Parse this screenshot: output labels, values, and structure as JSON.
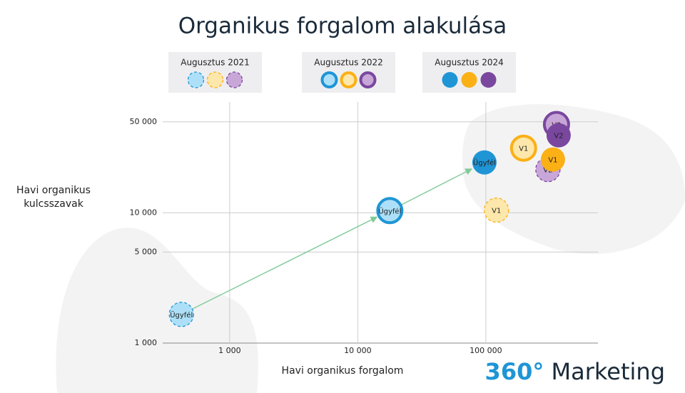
{
  "chart_data": {
    "type": "scatter",
    "title": "Organikus forgalom alakulása",
    "xlabel": "Havi organikus forgalom",
    "ylabel": "Havi organikus kulcsszavak",
    "xlog": true,
    "ylog": true,
    "grid": true,
    "xlim": [
      300,
      750000
    ],
    "ylim": [
      1000,
      71000
    ],
    "xticks": [
      {
        "value": 1000,
        "label": "1 000"
      },
      {
        "value": 10000,
        "label": "10 000"
      },
      {
        "value": 100000,
        "label": "100 000"
      }
    ],
    "yticks": [
      {
        "value": 1000,
        "label": "1 000"
      },
      {
        "value": 5000,
        "label": "5 000"
      },
      {
        "value": 10000,
        "label": "10 000"
      },
      {
        "value": 50000,
        "label": "50 000"
      }
    ],
    "point_colors": [
      "#1f95d6",
      "#fbb015",
      "#7a479e"
    ],
    "light_colors": [
      "#ade0f8",
      "#fde7ab",
      "#c8a6d8"
    ],
    "trend_color": "#7fcb96",
    "series": [
      {
        "name": "Augusztus 2021",
        "style": "dashed",
        "labels": [
          "Ügyfél",
          "V1",
          "V2"
        ],
        "x": [
          420,
          121000,
          305000
        ],
        "y": [
          1660,
          10500,
          21500
        ]
      },
      {
        "name": "Augusztus 2022",
        "style": "ring",
        "labels": [
          "Ügyfél",
          "V1",
          "V2"
        ],
        "x": [
          17800,
          197000,
          356000
        ],
        "y": [
          10400,
          31400,
          47700
        ]
      },
      {
        "name": "Augusztus 2024",
        "style": "solid",
        "labels": [
          "Ügyfél",
          "V1",
          "V2"
        ],
        "x": [
          97500,
          334000,
          370000
        ],
        "y": [
          24400,
          25700,
          39400
        ]
      }
    ]
  },
  "brand": {
    "number": "360°",
    "name": "Marketing"
  }
}
